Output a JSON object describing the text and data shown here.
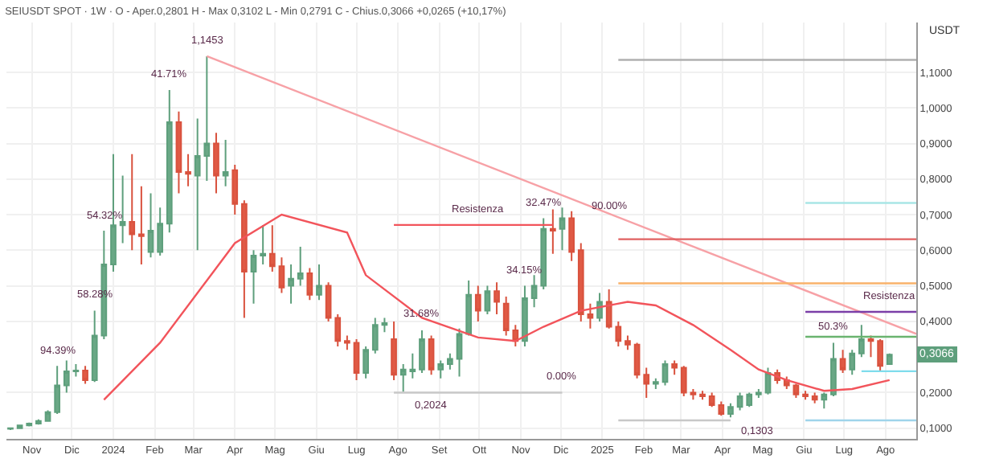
{
  "chart_data": {
    "type": "candlestick",
    "title": "SEIUSDT SPOT · 1W · O - Aper.0,2801 H - Max 0,3102 L - Min 0,2791 C - Chius.0,3066 +0,0265 (+10,17%)",
    "ylabel": "USDT",
    "x": [
      "2023-10-16",
      "2023-10-23",
      "2023-10-30",
      "2023-11-06",
      "2023-11-13",
      "2023-11-20",
      "2023-11-27",
      "2023-12-04",
      "2023-12-11",
      "2023-12-18",
      "2023-12-25",
      "2024-01-01",
      "2024-01-08",
      "2024-01-15",
      "2024-01-22",
      "2024-01-29",
      "2024-02-05",
      "2024-02-12",
      "2024-02-19",
      "2024-02-26",
      "2024-03-04",
      "2024-03-11",
      "2024-03-18",
      "2024-03-25",
      "2024-04-01",
      "2024-04-08",
      "2024-04-15",
      "2024-04-22",
      "2024-04-29",
      "2024-05-06",
      "2024-05-13",
      "2024-05-20",
      "2024-05-27",
      "2024-06-03",
      "2024-06-10",
      "2024-06-17",
      "2024-06-24",
      "2024-07-01",
      "2024-07-08",
      "2024-07-15",
      "2024-07-22",
      "2024-07-29",
      "2024-08-05",
      "2024-08-12",
      "2024-08-19",
      "2024-08-26",
      "2024-09-02",
      "2024-09-09",
      "2024-09-16",
      "2024-09-23",
      "2024-09-30",
      "2024-10-07",
      "2024-10-14",
      "2024-10-21",
      "2024-10-28",
      "2024-11-04",
      "2024-11-11",
      "2024-11-18",
      "2024-11-25",
      "2024-12-02",
      "2024-12-09",
      "2024-12-16",
      "2024-12-23",
      "2024-12-30",
      "2025-01-06",
      "2025-01-13",
      "2025-01-20",
      "2025-01-27",
      "2025-02-03",
      "2025-02-10",
      "2025-02-17",
      "2025-02-24",
      "2025-03-03",
      "2025-03-10",
      "2025-03-17",
      "2025-03-24",
      "2025-03-31",
      "2025-04-07",
      "2025-04-14",
      "2025-04-21",
      "2025-04-28",
      "2025-05-05",
      "2025-05-12",
      "2025-05-19",
      "2025-05-26",
      "2025-06-02",
      "2025-06-09",
      "2025-06-16",
      "2025-06-23",
      "2025-06-30",
      "2025-07-07",
      "2025-07-14",
      "2025-07-21",
      "2025-07-28",
      "2025-08-04"
    ],
    "ohlc": [
      [
        0.098,
        0.102,
        0.095,
        0.1
      ],
      [
        0.1,
        0.11,
        0.098,
        0.108
      ],
      [
        0.108,
        0.116,
        0.105,
        0.113
      ],
      [
        0.113,
        0.125,
        0.11,
        0.12
      ],
      [
        0.12,
        0.15,
        0.118,
        0.145
      ],
      [
        0.145,
        0.275,
        0.14,
        0.22
      ],
      [
        0.22,
        0.29,
        0.2,
        0.26
      ],
      [
        0.26,
        0.28,
        0.245,
        0.262
      ],
      [
        0.262,
        0.275,
        0.225,
        0.235
      ],
      [
        0.235,
        0.43,
        0.23,
        0.36
      ],
      [
        0.36,
        0.655,
        0.35,
        0.56
      ],
      [
        0.56,
        0.87,
        0.54,
        0.67
      ],
      [
        0.67,
        0.81,
        0.62,
        0.68
      ],
      [
        0.68,
        0.87,
        0.6,
        0.645
      ],
      [
        0.645,
        0.78,
        0.56,
        0.64
      ],
      [
        0.595,
        0.76,
        0.58,
        0.655
      ],
      [
        0.595,
        0.72,
        0.585,
        0.675
      ],
      [
        0.675,
        1.05,
        0.65,
        0.96
      ],
      [
        0.96,
        0.99,
        0.76,
        0.82
      ],
      [
        0.82,
        0.87,
        0.78,
        0.815
      ],
      [
        0.81,
        0.97,
        0.6,
        0.865
      ],
      [
        0.865,
        1.1453,
        0.795,
        0.9
      ],
      [
        0.9,
        0.93,
        0.76,
        0.81
      ],
      [
        0.81,
        0.91,
        0.78,
        0.82
      ],
      [
        0.825,
        0.84,
        0.7,
        0.73
      ],
      [
        0.73,
        0.74,
        0.41,
        0.54
      ],
      [
        0.54,
        0.6,
        0.45,
        0.585
      ],
      [
        0.585,
        0.67,
        0.56,
        0.59
      ],
      [
        0.59,
        0.67,
        0.54,
        0.555
      ],
      [
        0.555,
        0.58,
        0.48,
        0.495
      ],
      [
        0.5,
        0.56,
        0.45,
        0.52
      ],
      [
        0.52,
        0.61,
        0.5,
        0.535
      ],
      [
        0.535,
        0.55,
        0.46,
        0.475
      ],
      [
        0.475,
        0.56,
        0.46,
        0.5
      ],
      [
        0.5,
        0.51,
        0.4,
        0.41
      ],
      [
        0.41,
        0.42,
        0.33,
        0.345
      ],
      [
        0.345,
        0.36,
        0.32,
        0.34
      ],
      [
        0.34,
        0.35,
        0.235,
        0.255
      ],
      [
        0.255,
        0.33,
        0.24,
        0.32
      ],
      [
        0.32,
        0.41,
        0.31,
        0.39
      ],
      [
        0.39,
        0.41,
        0.37,
        0.395
      ],
      [
        0.35,
        0.4,
        0.235,
        0.25
      ],
      [
        0.25,
        0.28,
        0.2024,
        0.265
      ],
      [
        0.26,
        0.31,
        0.24,
        0.265
      ],
      [
        0.265,
        0.375,
        0.255,
        0.35
      ],
      [
        0.35,
        0.36,
        0.25,
        0.265
      ],
      [
        0.265,
        0.29,
        0.24,
        0.28
      ],
      [
        0.28,
        0.31,
        0.265,
        0.295
      ],
      [
        0.295,
        0.38,
        0.245,
        0.365
      ],
      [
        0.365,
        0.515,
        0.36,
        0.475
      ],
      [
        0.475,
        0.5,
        0.4,
        0.43
      ],
      [
        0.43,
        0.5,
        0.42,
        0.485
      ],
      [
        0.485,
        0.51,
        0.42,
        0.455
      ],
      [
        0.45,
        0.47,
        0.36,
        0.375
      ],
      [
        0.375,
        0.39,
        0.33,
        0.345
      ],
      [
        0.345,
        0.5,
        0.33,
        0.465
      ],
      [
        0.465,
        0.53,
        0.44,
        0.5
      ],
      [
        0.5,
        0.69,
        0.49,
        0.66
      ],
      [
        0.66,
        0.715,
        0.59,
        0.655
      ],
      [
        0.66,
        0.72,
        0.6,
        0.69
      ],
      [
        0.69,
        0.71,
        0.57,
        0.595
      ],
      [
        0.6,
        0.62,
        0.4,
        0.42
      ],
      [
        0.42,
        0.45,
        0.38,
        0.41
      ],
      [
        0.41,
        0.48,
        0.4,
        0.455
      ],
      [
        0.455,
        0.49,
        0.38,
        0.385
      ],
      [
        0.385,
        0.4,
        0.33,
        0.345
      ],
      [
        0.345,
        0.36,
        0.32,
        0.335
      ],
      [
        0.335,
        0.34,
        0.24,
        0.25
      ],
      [
        0.25,
        0.27,
        0.185,
        0.225
      ],
      [
        0.225,
        0.24,
        0.21,
        0.23
      ],
      [
        0.23,
        0.29,
        0.22,
        0.28
      ],
      [
        0.28,
        0.29,
        0.25,
        0.27
      ],
      [
        0.27,
        0.275,
        0.19,
        0.2
      ],
      [
        0.2,
        0.21,
        0.18,
        0.195
      ],
      [
        0.195,
        0.205,
        0.18,
        0.19
      ],
      [
        0.19,
        0.2,
        0.16,
        0.165
      ],
      [
        0.165,
        0.175,
        0.135,
        0.14
      ],
      [
        0.14,
        0.17,
        0.1303,
        0.16
      ],
      [
        0.16,
        0.2,
        0.15,
        0.19
      ],
      [
        0.165,
        0.2,
        0.16,
        0.195
      ],
      [
        0.195,
        0.21,
        0.185,
        0.2
      ],
      [
        0.2,
        0.27,
        0.195,
        0.255
      ],
      [
        0.255,
        0.265,
        0.225,
        0.235
      ],
      [
        0.235,
        0.245,
        0.21,
        0.22
      ],
      [
        0.22,
        0.225,
        0.185,
        0.195
      ],
      [
        0.195,
        0.205,
        0.18,
        0.19
      ],
      [
        0.19,
        0.2,
        0.17,
        0.18
      ],
      [
        0.18,
        0.2,
        0.155,
        0.195
      ],
      [
        0.195,
        0.34,
        0.19,
        0.295
      ],
      [
        0.295,
        0.32,
        0.255,
        0.265
      ],
      [
        0.265,
        0.32,
        0.25,
        0.31
      ],
      [
        0.31,
        0.39,
        0.3,
        0.35
      ],
      [
        0.35,
        0.36,
        0.3,
        0.345
      ],
      [
        0.345,
        0.35,
        0.26,
        0.275
      ],
      [
        0.2801,
        0.3102,
        0.2791,
        0.3066
      ]
    ],
    "series": [
      {
        "type": "line",
        "color": "#f2545b",
        "x": [
          "2023-12-25",
          "2024-02-05",
          "2024-04-01",
          "2024-05-06",
          "2024-06-24",
          "2024-07-08",
          "2024-08-19",
          "2024-09-30",
          "2024-10-28",
          "2024-11-18",
          "2024-12-16",
          "2025-01-20",
          "2025-02-10",
          "2025-03-10",
          "2025-04-07",
          "2025-04-28",
          "2025-05-19",
          "2025-06-16",
          "2025-07-07",
          "2025-08-04"
        ],
        "values": [
          0.18,
          0.34,
          0.62,
          0.7,
          0.65,
          0.53,
          0.41,
          0.355,
          0.345,
          0.385,
          0.43,
          0.455,
          0.445,
          0.39,
          0.32,
          0.265,
          0.235,
          0.205,
          0.21,
          0.235
        ]
      },
      {
        "type": "line",
        "color": "#f7a1a6",
        "x": [
          "2024-03-11",
          "2025-08-24"
        ],
        "values": [
          1.1453,
          0.365
        ]
      },
      {
        "type": "line",
        "color": "#f2545b",
        "x": [
          "2024-07-29",
          "2024-11-25"
        ],
        "values": [
          0.671,
          0.671
        ]
      },
      {
        "type": "line",
        "color": "#c8c8c8",
        "x": [
          "2024-07-29",
          "2024-12-02"
        ],
        "values": [
          0.2,
          0.2
        ]
      },
      {
        "type": "line",
        "color": "#b0b0b0",
        "x": [
          "2025-01-13",
          "2025-08-24"
        ],
        "values": [
          1.135,
          1.135
        ]
      },
      {
        "type": "line",
        "color": "#e06060",
        "x": [
          "2025-01-13",
          "2025-08-24"
        ],
        "values": [
          0.631,
          0.631
        ]
      },
      {
        "type": "line",
        "color": "#f9b26b",
        "x": [
          "2025-01-13",
          "2025-08-24"
        ],
        "values": [
          0.507,
          0.507
        ]
      },
      {
        "type": "line",
        "color": "#c8c8c8",
        "x": [
          "2025-01-13",
          "2025-04-07"
        ],
        "values": [
          0.122,
          0.122
        ]
      },
      {
        "type": "line",
        "color": "#a8e6e6",
        "x": [
          "2025-06-02",
          "2025-08-24"
        ],
        "values": [
          0.733,
          0.733
        ]
      },
      {
        "type": "line",
        "color": "#7b3fa8",
        "x": [
          "2025-06-02",
          "2025-08-24"
        ],
        "values": [
          0.427,
          0.427
        ]
      },
      {
        "type": "line",
        "color": "#6ab46f",
        "x": [
          "2025-06-02",
          "2025-08-24"
        ],
        "values": [
          0.357,
          0.357
        ]
      },
      {
        "type": "line",
        "color": "#9fd4ea",
        "x": [
          "2025-06-02",
          "2025-08-24"
        ],
        "values": [
          0.122,
          0.122
        ]
      },
      {
        "type": "line",
        "color": "#7fdcec",
        "x": [
          "2025-07-14",
          "2025-08-24"
        ],
        "values": [
          0.26,
          0.26
        ]
      }
    ],
    "annotations": [
      {
        "text": "94.39%",
        "x": "2023-11-20",
        "y": 0.275
      },
      {
        "text": "58.28%",
        "x": "2023-12-18",
        "y": 0.43
      },
      {
        "text": "54.32%",
        "x": "2023-12-25",
        "y": 0.655
      },
      {
        "text": "41.71%",
        "x": "2024-02-12",
        "y": 1.05
      },
      {
        "text": "1,1453",
        "x": "2024-03-11",
        "y": 1.1453
      },
      {
        "text": "31.68%",
        "x": "2024-08-19",
        "y": 0.375
      },
      {
        "text": "0,2024",
        "x": "2024-08-05",
        "y": 0.2024
      },
      {
        "text": "34.15%",
        "x": "2024-11-04",
        "y": 0.5
      },
      {
        "text": "32.47%",
        "x": "2024-11-18",
        "y": 0.69
      },
      {
        "text": "90.00%",
        "x": "2025-01-06",
        "y": 0.68
      },
      {
        "text": "0.00%",
        "x": "2024-12-02",
        "y": 0.2
      },
      {
        "text": "Resistenza",
        "x": "2024-09-30",
        "y": 0.671
      },
      {
        "text": "0,1303",
        "x": "2025-04-07",
        "y": 0.1303
      },
      {
        "text": "50.3%",
        "x": "2025-06-23",
        "y": 0.34
      },
      {
        "text": "Resistenza",
        "x": "2025-08-04",
        "y": 0.427
      },
      {
        "text": "0,3066",
        "y": 0.3066
      }
    ],
    "xlim": [
      "2023-10-13",
      "2025-08-24"
    ],
    "xticks": [
      {
        "value": "2023-11-01",
        "label": "Nov"
      },
      {
        "value": "2023-12-01",
        "label": "Dic"
      },
      {
        "value": "2024-01-01",
        "label": "2024"
      },
      {
        "value": "2024-02-01",
        "label": "Feb"
      },
      {
        "value": "2024-03-01",
        "label": "Mar"
      },
      {
        "value": "2024-04-01",
        "label": "Apr"
      },
      {
        "value": "2024-05-01",
        "label": "Mag"
      },
      {
        "value": "2024-06-01",
        "label": "Giu"
      },
      {
        "value": "2024-07-01",
        "label": "Lug"
      },
      {
        "value": "2024-08-01",
        "label": "Ago"
      },
      {
        "value": "2024-09-01",
        "label": "Set"
      },
      {
        "value": "2024-10-01",
        "label": "Ott"
      },
      {
        "value": "2024-11-01",
        "label": "Nov"
      },
      {
        "value": "2024-12-01",
        "label": "Dic"
      },
      {
        "value": "2025-01-01",
        "label": "2025"
      },
      {
        "value": "2025-02-01",
        "label": "Feb"
      },
      {
        "value": "2025-03-01",
        "label": "Mar"
      },
      {
        "value": "2025-04-01",
        "label": "Apr"
      },
      {
        "value": "2025-05-01",
        "label": "Mag"
      },
      {
        "value": "2025-06-01",
        "label": "Giu"
      },
      {
        "value": "2025-07-01",
        "label": "Lug"
      },
      {
        "value": "2025-08-01",
        "label": "Ago"
      }
    ],
    "ylim": [
      0.07,
      1.24
    ],
    "yticks": [
      {
        "value": 0.1,
        "label": "0,1000"
      },
      {
        "value": 0.2,
        "label": "0,2000"
      },
      {
        "value": 0.4,
        "label": "0,4000"
      },
      {
        "value": 0.5,
        "label": "0,5000"
      },
      {
        "value": 0.6,
        "label": "0,6000"
      },
      {
        "value": 0.7,
        "label": "0,7000"
      },
      {
        "value": 0.8,
        "label": "0,8000"
      },
      {
        "value": 0.9,
        "label": "0,9000"
      },
      {
        "value": 1.0,
        "label": "1,0000"
      },
      {
        "value": 1.1,
        "label": "1,1000"
      }
    ],
    "grid": true
  }
}
